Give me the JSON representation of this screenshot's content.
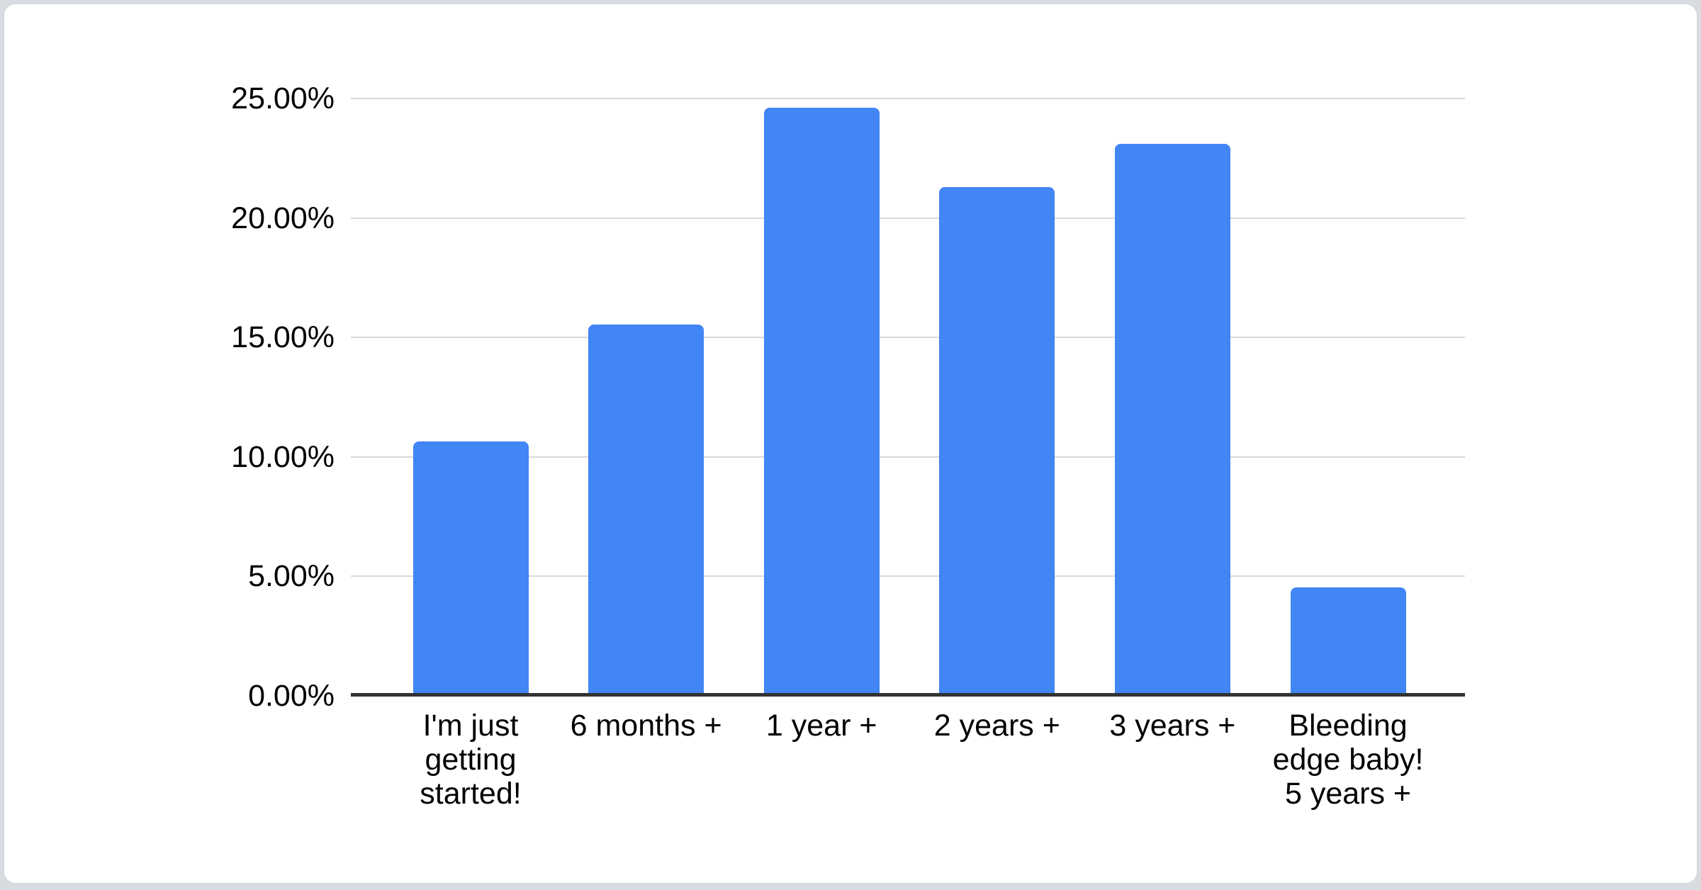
{
  "chart_data": {
    "type": "bar",
    "title": "",
    "categories": [
      "I'm just getting started!",
      "6 months +",
      "1 year +",
      "2 years +",
      "3 years +",
      "Bleeding edge baby! 5 years +"
    ],
    "categories_display": [
      "I'm just\ngetting\nstarted!",
      "6 months +",
      "1 year +",
      "2 years +",
      "3 years +",
      "Bleeding\nedge baby!\n5 years +"
    ],
    "values": [
      10.65,
      15.55,
      24.6,
      21.3,
      23.1,
      4.55
    ],
    "value_unit": "percent",
    "xlabel": "",
    "ylabel": "",
    "ylim": [
      0,
      25
    ],
    "y_ticks": [
      "0.00%",
      "5.00%",
      "10.00%",
      "15.00%",
      "20.00%",
      "25.00%"
    ],
    "grid": true,
    "legend": "none",
    "bar_color": "#4285f4",
    "gridline_color": "#d9d9d9",
    "axis_color": "#333333",
    "text_color": "#000000",
    "card_background": "#ffffff",
    "card_border_color": "#d5d9dd",
    "page_background": "#d8dce0"
  }
}
